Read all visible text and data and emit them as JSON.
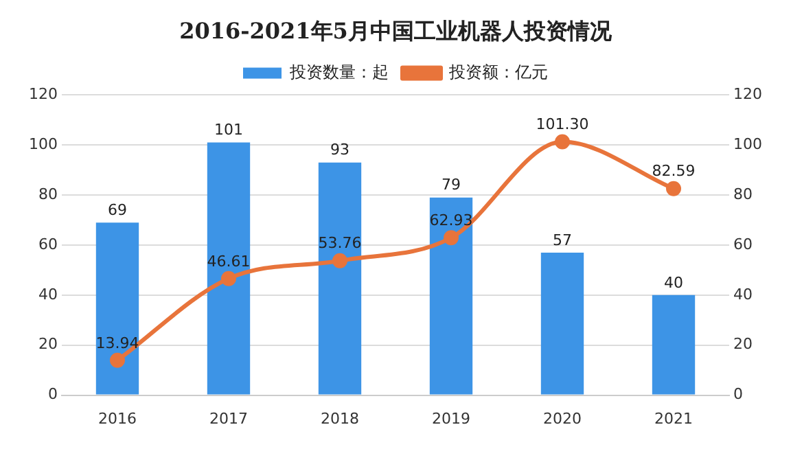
{
  "chart_data": {
    "type": "bar",
    "title": "2016-2021年5月中国工业机器人投资情况",
    "categories": [
      "2016",
      "2017",
      "2018",
      "2019",
      "2020",
      "2021"
    ],
    "series": [
      {
        "name": "投资数量：起",
        "color": "#3d94e6",
        "values": [
          69,
          101,
          93,
          79,
          57,
          40
        ],
        "value_labels": [
          "69",
          "101",
          "93",
          "79",
          "57",
          "40"
        ]
      },
      {
        "name": "投资额：亿元",
        "type": "line",
        "axis": "y2",
        "color": "#e8743b",
        "marker": "circle",
        "values": [
          13.94,
          46.61,
          53.76,
          62.93,
          101.3,
          82.59
        ],
        "value_labels": [
          "13.94",
          "46.61",
          "53.76",
          "62.93",
          "101.30",
          "82.59"
        ]
      }
    ],
    "ylim": [
      0,
      120
    ],
    "yticks": [
      0,
      20,
      40,
      60,
      80,
      100,
      120
    ],
    "y2lim": [
      0,
      120
    ],
    "y2ticks": [
      0,
      20,
      40,
      60,
      80,
      100,
      120
    ],
    "grid": "y",
    "legend": "top"
  }
}
